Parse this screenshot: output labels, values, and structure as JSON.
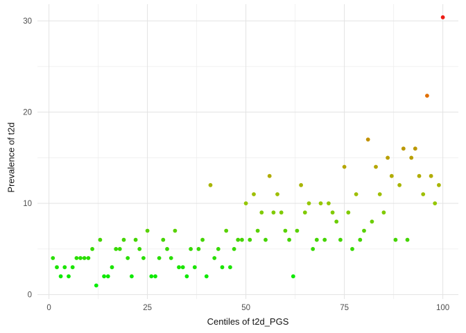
{
  "chart_data": {
    "type": "scatter",
    "title": "",
    "xlabel": "Centiles of t2d_PGS",
    "ylabel": "Prevalence of t2d",
    "x_ticks": [
      0,
      25,
      50,
      75,
      100
    ],
    "y_ticks": [
      0,
      10,
      20,
      30
    ],
    "xlim": [
      -3,
      104
    ],
    "ylim": [
      -0.5,
      31.9
    ],
    "grid": "major and minor light-gray gridlines on white background, no axis lines, no legend",
    "legend": "none",
    "marker": "filled circle, radius ~3px",
    "color_scale": {
      "description": "point color encodes prevalence: low=green, mid=olive/yellow, high=orange, max=red",
      "domain": [
        1,
        30.4
      ],
      "stops": [
        [
          0.0,
          [
            0,
            238,
            0
          ]
        ],
        [
          0.17,
          [
            68,
            212,
            0
          ]
        ],
        [
          0.31,
          [
            150,
            198,
            0
          ]
        ],
        [
          0.41,
          [
            178,
            172,
            0
          ]
        ],
        [
          0.52,
          [
            188,
            150,
            0
          ]
        ],
        [
          0.71,
          [
            226,
            110,
            0
          ]
        ],
        [
          1.0,
          [
            237,
            28,
            20
          ]
        ]
      ]
    },
    "colors": {
      "background": "#ffffff",
      "grid_major": "#e3e3e3",
      "grid_minor": "#f0f0f0",
      "tick_label": "#4d4d4d",
      "axis_title": "#111111",
      "low_point": "#22d500",
      "mid_point": "#b2ac00",
      "orange_point": "#e26e00",
      "red_point": "#ed1c14"
    },
    "points": [
      [
        1,
        4
      ],
      [
        2,
        3
      ],
      [
        3,
        2
      ],
      [
        4,
        3
      ],
      [
        5,
        2
      ],
      [
        6,
        3
      ],
      [
        7,
        4
      ],
      [
        8,
        4
      ],
      [
        9,
        4
      ],
      [
        10,
        4
      ],
      [
        11,
        5
      ],
      [
        12,
        1
      ],
      [
        13,
        6
      ],
      [
        14,
        2
      ],
      [
        15,
        2
      ],
      [
        16,
        3
      ],
      [
        17,
        5
      ],
      [
        18,
        5
      ],
      [
        19,
        6
      ],
      [
        20,
        4
      ],
      [
        21,
        2
      ],
      [
        22,
        6
      ],
      [
        23,
        5
      ],
      [
        24,
        4
      ],
      [
        25,
        7
      ],
      [
        26,
        2
      ],
      [
        27,
        2
      ],
      [
        28,
        4
      ],
      [
        29,
        6
      ],
      [
        30,
        5
      ],
      [
        31,
        4
      ],
      [
        32,
        7
      ],
      [
        33,
        3
      ],
      [
        34,
        3
      ],
      [
        35,
        2
      ],
      [
        36,
        5
      ],
      [
        37,
        3
      ],
      [
        38,
        5
      ],
      [
        39,
        6
      ],
      [
        40,
        2
      ],
      [
        41,
        12
      ],
      [
        42,
        4
      ],
      [
        43,
        5
      ],
      [
        44,
        3
      ],
      [
        45,
        7
      ],
      [
        46,
        3
      ],
      [
        47,
        5
      ],
      [
        48,
        6
      ],
      [
        49,
        6
      ],
      [
        50,
        10
      ],
      [
        51,
        6
      ],
      [
        52,
        11
      ],
      [
        53,
        7
      ],
      [
        54,
        9
      ],
      [
        55,
        6
      ],
      [
        56,
        13
      ],
      [
        57,
        9
      ],
      [
        58,
        11
      ],
      [
        59,
        9
      ],
      [
        60,
        7
      ],
      [
        61,
        6
      ],
      [
        62,
        2
      ],
      [
        63,
        7
      ],
      [
        64,
        12
      ],
      [
        65,
        9
      ],
      [
        66,
        10
      ],
      [
        67,
        5
      ],
      [
        68,
        6
      ],
      [
        69,
        10
      ],
      [
        70,
        6
      ],
      [
        71,
        10
      ],
      [
        72,
        9
      ],
      [
        73,
        8
      ],
      [
        74,
        6
      ],
      [
        75,
        14
      ],
      [
        76,
        9
      ],
      [
        77,
        5
      ],
      [
        78,
        11
      ],
      [
        79,
        6
      ],
      [
        80,
        7
      ],
      [
        81,
        17
      ],
      [
        82,
        8
      ],
      [
        83,
        14
      ],
      [
        84,
        11
      ],
      [
        85,
        9
      ],
      [
        86,
        15
      ],
      [
        87,
        13
      ],
      [
        88,
        6
      ],
      [
        89,
        12
      ],
      [
        90,
        16
      ],
      [
        91,
        6
      ],
      [
        92,
        15
      ],
      [
        93,
        16
      ],
      [
        94,
        13
      ],
      [
        95,
        11
      ],
      [
        96,
        21.8
      ],
      [
        97,
        13
      ],
      [
        98,
        10
      ],
      [
        99,
        12
      ],
      [
        100,
        30.4
      ]
    ]
  },
  "axes": {
    "x_tick_labels": [
      "0",
      "25",
      "50",
      "75",
      "100"
    ],
    "y_tick_labels": [
      "0",
      "10",
      "20",
      "30"
    ]
  }
}
